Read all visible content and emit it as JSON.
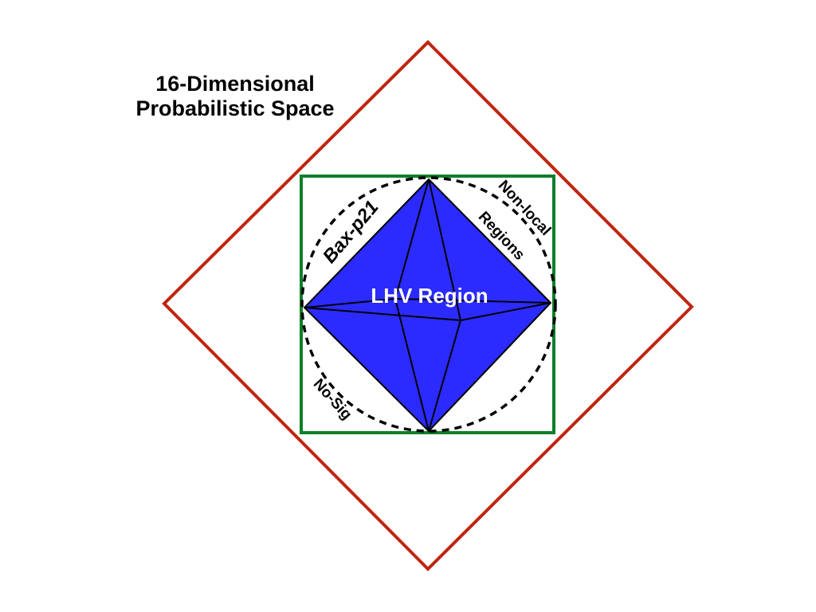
{
  "diagram": {
    "title_line1": "16-Dimensional",
    "title_line2": "Probabilistic Space",
    "inner_region_label": "LHV Region",
    "top_left_label": "Bax-p21",
    "top_right_label_line1": "Non-local",
    "top_right_label_line2": "Regions",
    "bottom_left_label": "No-Sig"
  },
  "colors": {
    "outer_diamond": "#c0250f",
    "square": "#0e7f2a",
    "octahedron_fill": "#2b2bff",
    "edges": "#000000",
    "inner_label": "#ffffff"
  }
}
